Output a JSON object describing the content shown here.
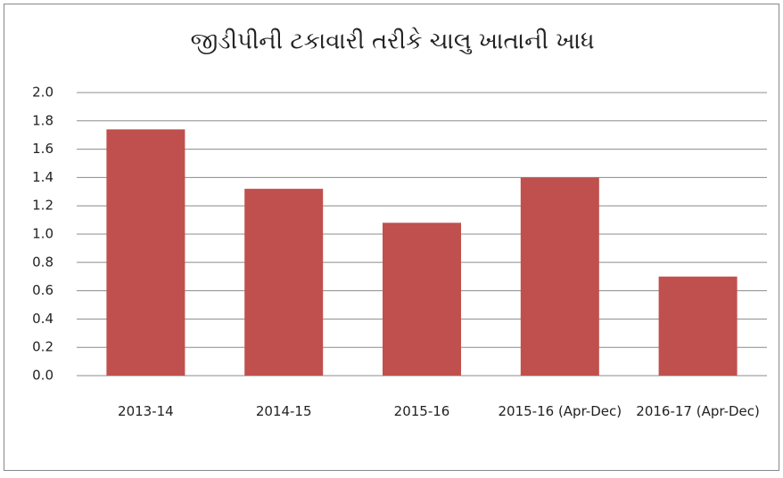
{
  "chart_data": {
    "type": "bar",
    "title": "જીડીપીની ટકાવારી તરીકે ચાલુ ખાતાની ખાધ",
    "categories": [
      "2013-14",
      "2014-15",
      "2015-16",
      "2015-16 (Apr-Dec)",
      "2016-17 (Apr-Dec)"
    ],
    "values": [
      1.74,
      1.32,
      1.08,
      1.4,
      0.7
    ],
    "color": "#c0504d",
    "ylim": [
      0,
      2
    ],
    "yticks": [
      {
        "value": 0,
        "label": "0.0"
      },
      0.2,
      0.4,
      0.6,
      0.8,
      {
        "value": 1,
        "label": "1.0"
      },
      1.2,
      1.4,
      1.6,
      1.8,
      {
        "value": 2,
        "label": "2.0"
      }
    ],
    "grid": true
  }
}
